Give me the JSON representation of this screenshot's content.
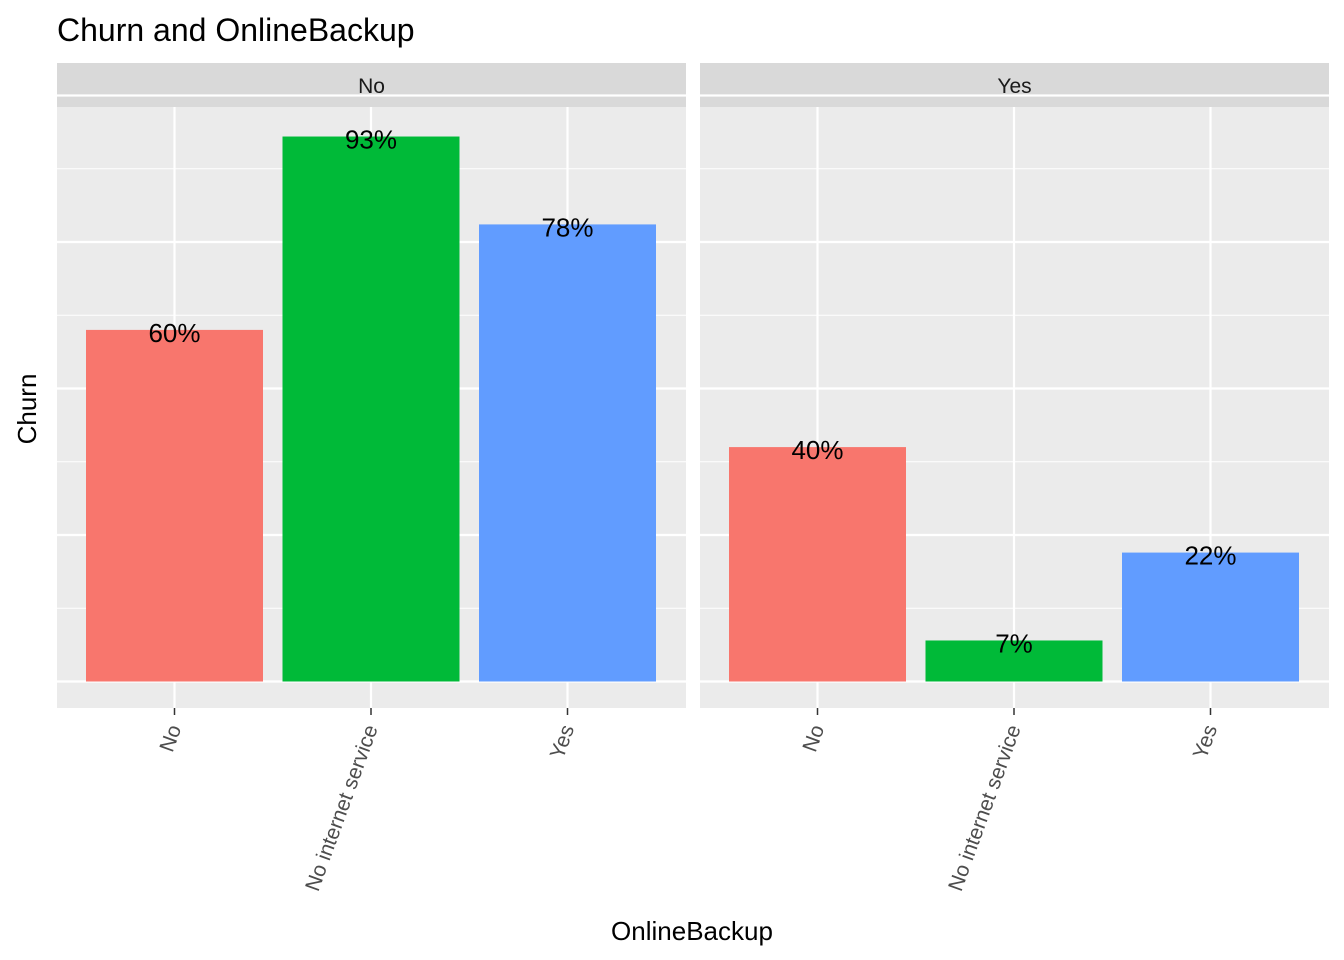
{
  "chart_data": {
    "type": "bar",
    "title": "Churn and OnlineBackup",
    "xlabel": "OnlineBackup",
    "ylabel": "Churn",
    "ylim": [
      0,
      1
    ],
    "grid": true,
    "legend": "none",
    "categories": [
      "No",
      "No internet service",
      "Yes"
    ],
    "colors": [
      "#F8766D",
      "#00BA38",
      "#619CFF"
    ],
    "panels": [
      {
        "facet": "No",
        "values": [
          0.6,
          0.93,
          0.78
        ],
        "labels": [
          "60%",
          "93%",
          "78%"
        ]
      },
      {
        "facet": "Yes",
        "values": [
          0.4,
          0.07,
          0.22
        ],
        "labels": [
          "40%",
          "7%",
          "22%"
        ]
      }
    ]
  },
  "style": {
    "panel_bg": "#EBEBEB",
    "strip_bg": "#D9D9D9",
    "grid_color": "#FFFFFF",
    "tick_color": "#333333"
  }
}
